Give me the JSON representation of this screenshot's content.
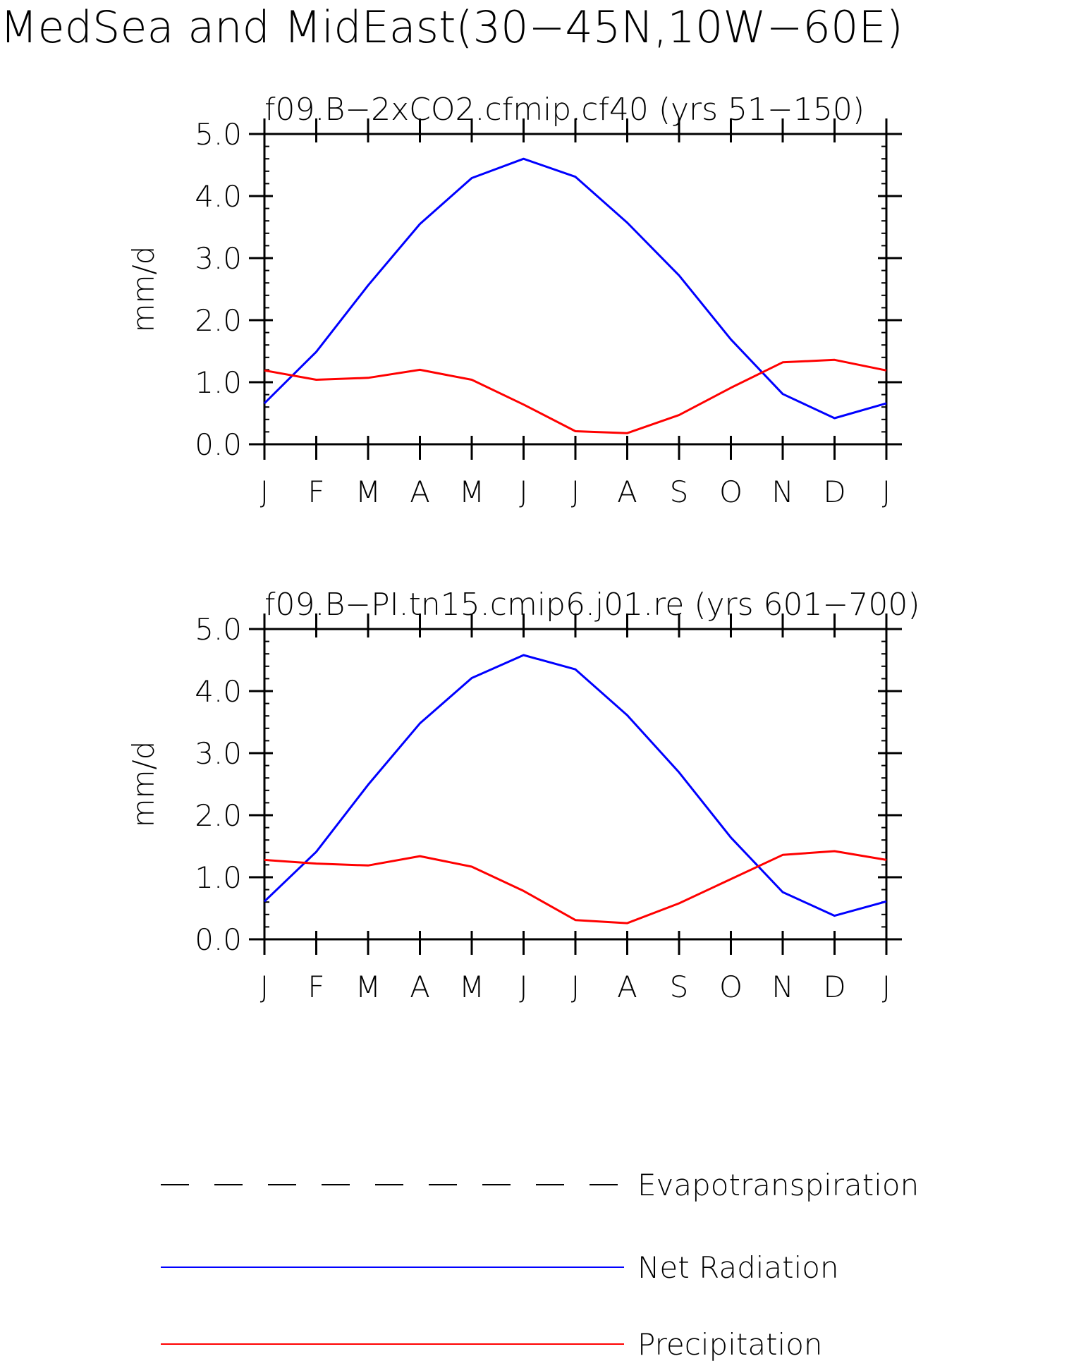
{
  "title": "MedSea and MidEast(30−45N,10W−60E)",
  "colors": {
    "evapotranspiration": "#000000",
    "net_radiation": "#0000ff",
    "precipitation": "#ff0000"
  },
  "legend": [
    {
      "label": "Evapotranspiration",
      "style": "dashed",
      "color": "#000000"
    },
    {
      "label": "Net Radiation",
      "style": "solid",
      "color": "#0000ff"
    },
    {
      "label": "Precipitation",
      "style": "solid",
      "color": "#ff0000"
    }
  ],
  "chart_data": [
    {
      "type": "line",
      "title": "f09.B−2xCO2.cfmip.cf40 (yrs 51−150)",
      "ylabel": "mm/d",
      "xlabel": "",
      "categories": [
        "J",
        "F",
        "M",
        "A",
        "M",
        "J",
        "J",
        "A",
        "S",
        "O",
        "N",
        "D",
        "J"
      ],
      "ylim": [
        0,
        5
      ],
      "yticks": [
        "0.0",
        "1.0",
        "2.0",
        "3.0",
        "4.0",
        "5.0"
      ],
      "grid": false,
      "series": [
        {
          "name": "Net Radiation",
          "color": "#0000ff",
          "values": [
            0.66,
            1.49,
            2.56,
            3.55,
            4.29,
            4.6,
            4.31,
            3.57,
            2.72,
            1.69,
            0.81,
            0.42,
            0.66
          ]
        },
        {
          "name": "Precipitation",
          "color": "#ff0000",
          "values": [
            1.19,
            1.04,
            1.07,
            1.2,
            1.04,
            0.64,
            0.21,
            0.18,
            0.47,
            0.91,
            1.32,
            1.36,
            1.19
          ]
        }
      ]
    },
    {
      "type": "line",
      "title": "f09.B−PI.tn15.cmip6.j01.re (yrs 601−700)",
      "ylabel": "mm/d",
      "xlabel": "",
      "categories": [
        "J",
        "F",
        "M",
        "A",
        "M",
        "J",
        "J",
        "A",
        "S",
        "O",
        "N",
        "D",
        "J"
      ],
      "ylim": [
        0,
        5
      ],
      "yticks": [
        "0.0",
        "1.0",
        "2.0",
        "3.0",
        "4.0",
        "5.0"
      ],
      "grid": false,
      "series": [
        {
          "name": "Net Radiation",
          "color": "#0000ff",
          "values": [
            0.61,
            1.41,
            2.49,
            3.48,
            4.21,
            4.58,
            4.35,
            3.61,
            2.69,
            1.64,
            0.76,
            0.38,
            0.61
          ]
        },
        {
          "name": "Precipitation",
          "color": "#ff0000",
          "values": [
            1.28,
            1.22,
            1.19,
            1.34,
            1.17,
            0.78,
            0.31,
            0.26,
            0.58,
            0.97,
            1.36,
            1.42,
            1.28
          ]
        }
      ]
    }
  ]
}
